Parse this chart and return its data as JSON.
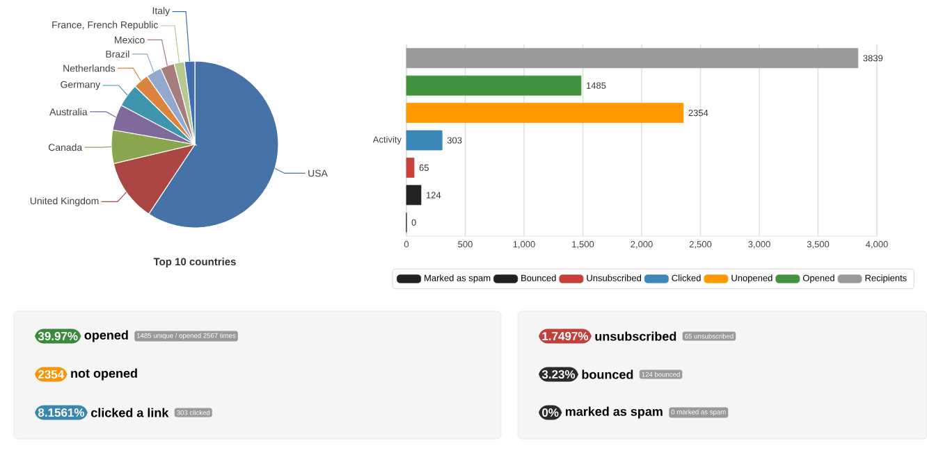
{
  "chart_data": [
    {
      "type": "pie",
      "title": "Top 10 countries",
      "categories": [
        "USA",
        "United Kingdom",
        "Canada",
        "Australia",
        "Germany",
        "Netherlands",
        "Brazil",
        "Mexico",
        "France, French Republic",
        "Italy"
      ],
      "values": [
        59.3,
        12,
        6.5,
        5,
        4.5,
        3,
        3,
        2.7,
        2,
        2
      ],
      "colors": [
        "#4572a7",
        "#aa4643",
        "#89a54e",
        "#80699b",
        "#3d96ae",
        "#db843d",
        "#92a8cd",
        "#a47d7c",
        "#b5ca92",
        "#3f6fb0"
      ]
    },
    {
      "type": "bar",
      "orientation": "horizontal",
      "categories": [
        null,
        null,
        null,
        "Activity",
        null,
        null,
        null
      ],
      "xlim": [
        0,
        4000
      ],
      "xticks": [
        0,
        500,
        {
          "value": 1000,
          "label": "1,000"
        },
        {
          "value": 1500,
          "label": "1,500"
        },
        {
          "value": 2000,
          "label": "2,000"
        },
        {
          "value": 2500,
          "label": "2,500"
        },
        {
          "value": 3000,
          "label": "3,000"
        },
        {
          "value": 3500,
          "label": "3,500"
        },
        {
          "value": 4000,
          "label": "4,000"
        }
      ],
      "grid": "x",
      "legend": "bottom",
      "data_labels": true,
      "series": [
        {
          "name": "Recipients",
          "color": "#999999",
          "values": [
            3839,
            null,
            null,
            null,
            null,
            null,
            null
          ]
        },
        {
          "name": "Opened",
          "color": "#43923f",
          "values": [
            null,
            1485,
            null,
            null,
            null,
            null,
            null
          ]
        },
        {
          "name": "Unopened",
          "color": "#ff9900",
          "values": [
            null,
            null,
            2354,
            null,
            null,
            null,
            null
          ]
        },
        {
          "name": "Clicked",
          "color": "#3a87b8",
          "values": [
            null,
            null,
            null,
            303,
            null,
            null,
            null
          ]
        },
        {
          "name": "Unsubscribed",
          "color": "#c8403c",
          "values": [
            null,
            null,
            null,
            null,
            65,
            null,
            null
          ]
        },
        {
          "name": "Bounced",
          "color": "#222222",
          "values": [
            null,
            null,
            null,
            null,
            null,
            124,
            null
          ]
        },
        {
          "name": "Marked as spam",
          "color": "#222222",
          "values": [
            null,
            null,
            null,
            null,
            null,
            null,
            0
          ]
        }
      ]
    },
    {
      "type": "other",
      "categories": [
        "opened",
        "not opened",
        "clicked a link",
        "unsubscribed",
        "bounced",
        "marked as spam"
      ],
      "value_labels": [
        "39.97%",
        "2354",
        "8.1561%",
        "1.7497%",
        "3.23%",
        "0%"
      ],
      "colors": [
        "#3b8a3b",
        "#f89406",
        "#3a87ad",
        "#c0403c",
        "#2a2a2a",
        "#2a2a2a"
      ],
      "annotations": [
        "1485 unique / opened 2567 times",
        null,
        "303 clicked",
        "65 unsubscribed",
        "124 bounced",
        "0 marked as spam"
      ]
    }
  ]
}
